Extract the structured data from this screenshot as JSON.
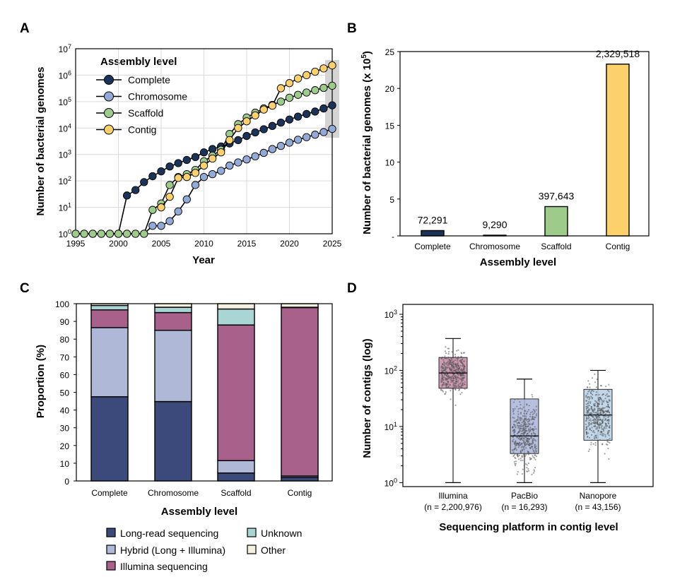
{
  "colors": {
    "complete": "#1c3359",
    "chromosome": "#93aad9",
    "scaffold": "#9dcc8a",
    "contig": "#fcd16b",
    "long_read": "#3b4a7b",
    "hybrid": "#afb8d6",
    "illumina": "#a7618a",
    "unknown": "#a9d6d5",
    "other": "#f5efe0",
    "box_illumina": "#c98aa8",
    "box_pacbio": "#a9b4d8",
    "box_nanopore": "#b7d0e6",
    "grid": "#d9d9d9",
    "highlight": "#d4d4d4"
  },
  "chart_data": [
    {
      "panel": "A",
      "type": "line",
      "xlabel": "Year",
      "ylabel": "Number of bacterial genomes",
      "yscale": "log",
      "xlim": [
        1995,
        2025
      ],
      "ylim": [
        1,
        10000000
      ],
      "xticks": [
        "1995",
        "2000",
        "2005",
        "2010",
        "2015",
        "2020",
        "2025"
      ],
      "yticks": [
        {
          "base": "10",
          "exp": "0"
        },
        {
          "base": "10",
          "exp": "1"
        },
        {
          "base": "10",
          "exp": "2"
        },
        {
          "base": "10",
          "exp": "3"
        },
        {
          "base": "10",
          "exp": "4"
        },
        {
          "base": "10",
          "exp": "5"
        },
        {
          "base": "10",
          "exp": "6"
        },
        {
          "base": "10",
          "exp": "7"
        }
      ],
      "grid": true,
      "legend_title": "Assembly level",
      "legend_position": "top-left",
      "highlight_year": 2025,
      "x": [
        1995,
        1996,
        1997,
        1998,
        1999,
        2000,
        2001,
        2002,
        2003,
        2004,
        2005,
        2006,
        2007,
        2008,
        2009,
        2010,
        2011,
        2012,
        2013,
        2014,
        2015,
        2016,
        2017,
        2018,
        2019,
        2020,
        2021,
        2022,
        2023,
        2024,
        2025
      ],
      "series": [
        {
          "name": "Complete",
          "color_key": "complete",
          "values": [
            1,
            1,
            1,
            1,
            1,
            1,
            28,
            45,
            90,
            150,
            230,
            350,
            470,
            620,
            800,
            1200,
            1600,
            2000,
            2600,
            3500,
            5000,
            6800,
            9000,
            12000,
            16000,
            21000,
            27000,
            34000,
            42000,
            55000,
            72291
          ]
        },
        {
          "name": "Chromosome",
          "color_key": "chromosome",
          "values": [
            1,
            1,
            1,
            1,
            1,
            1,
            1,
            1,
            1,
            2,
            2,
            3,
            7,
            20,
            70,
            140,
            180,
            240,
            380,
            500,
            650,
            850,
            1150,
            1600,
            2100,
            2800,
            3600,
            4500,
            5600,
            7000,
            9290
          ]
        },
        {
          "name": "Scaffold",
          "color_key": "scaffold",
          "values": [
            1,
            1,
            1,
            1,
            1,
            1,
            1,
            1,
            1,
            8,
            14,
            70,
            140,
            180,
            260,
            550,
            900,
            1500,
            6000,
            14000,
            25000,
            38000,
            55000,
            75000,
            100000,
            140000,
            180000,
            220000,
            270000,
            330000,
            397643
          ]
        },
        {
          "name": "Contig",
          "color_key": "contig",
          "values": [
            null,
            null,
            null,
            null,
            null,
            null,
            null,
            null,
            null,
            null,
            10,
            25,
            130,
            140,
            200,
            380,
            700,
            1200,
            3500,
            10000,
            18000,
            30000,
            50000,
            70000,
            320000,
            500000,
            750000,
            1000000,
            1350000,
            1800000,
            2329518
          ]
        }
      ]
    },
    {
      "panel": "B",
      "type": "bar",
      "xlabel": "Assembly level",
      "ylabel_main": "Number of bacterial genomes (x 10",
      "ylabel_exp": "5",
      "ylabel_close": ")",
      "ylim": [
        0,
        25
      ],
      "yticks": [
        "-",
        "5",
        "10",
        "15",
        "20",
        "25"
      ],
      "categories": [
        "Complete",
        "Chromosome",
        "Scaffold",
        "Contig"
      ],
      "values": [
        72291,
        9290,
        397643,
        2329518
      ],
      "labels": [
        "72,291",
        "9,290",
        "397,643",
        "2,329,518"
      ],
      "color_keys": [
        "complete",
        "complete",
        "scaffold",
        "contig"
      ]
    },
    {
      "panel": "C",
      "type": "bar",
      "stacked": true,
      "xlabel": "Assembly level",
      "ylabel": "Proportion (%)",
      "ylim": [
        0,
        100
      ],
      "yticks": [
        "0",
        "10",
        "20",
        "30",
        "40",
        "50",
        "60",
        "70",
        "80",
        "90",
        "100"
      ],
      "categories": [
        "Complete",
        "Chromosome",
        "Scaffold",
        "Contig"
      ],
      "legend_position": "bottom",
      "series": [
        {
          "name": "Long-read sequencing",
          "color_key": "long_read",
          "values": [
            47.5,
            44.8,
            4.5,
            2.0
          ]
        },
        {
          "name": "Hybrid (Long + Illumina)",
          "color_key": "hybrid",
          "values": [
            39.0,
            40.2,
            7.0,
            0.8
          ]
        },
        {
          "name": "Illumina sequencing",
          "color_key": "illumina",
          "values": [
            10.0,
            10.0,
            76.5,
            95.0
          ]
        },
        {
          "name": "Unknown",
          "color_key": "unknown",
          "values": [
            2.5,
            3.0,
            9.0,
            0.2
          ]
        },
        {
          "name": "Other",
          "color_key": "other",
          "values": [
            1.0,
            2.0,
            3.0,
            2.0
          ]
        }
      ]
    },
    {
      "panel": "D",
      "type": "box",
      "xlabel": "Sequencing platform in contig level",
      "ylabel": "Number of contigs (log)",
      "yscale": "log",
      "ylim": [
        0.85,
        1500
      ],
      "yticks": [
        {
          "base": "10",
          "exp": "0"
        },
        {
          "base": "10",
          "exp": "1"
        },
        {
          "base": "10",
          "exp": "2"
        },
        {
          "base": "10",
          "exp": "3"
        }
      ],
      "categories": [
        {
          "name": "Illumina",
          "n": "(n = 2,200,976)",
          "color_key": "box_illumina",
          "min": 1,
          "q1": 48,
          "median": 90,
          "q3": 170,
          "max": 370,
          "outlier_max": 1200
        },
        {
          "name": "PacBio",
          "n": "(n = 16,293)",
          "color_key": "box_pacbio",
          "min": 1,
          "q1": 3.3,
          "median": 6.8,
          "q3": 31,
          "max": 70,
          "outlier_max": 420
        },
        {
          "name": "Nanopore",
          "n": "(n = 43,156)",
          "color_key": "box_nanopore",
          "min": 1,
          "q1": 5.7,
          "median": 16,
          "q3": 46,
          "max": 100,
          "outlier_max": 1000
        }
      ]
    }
  ]
}
